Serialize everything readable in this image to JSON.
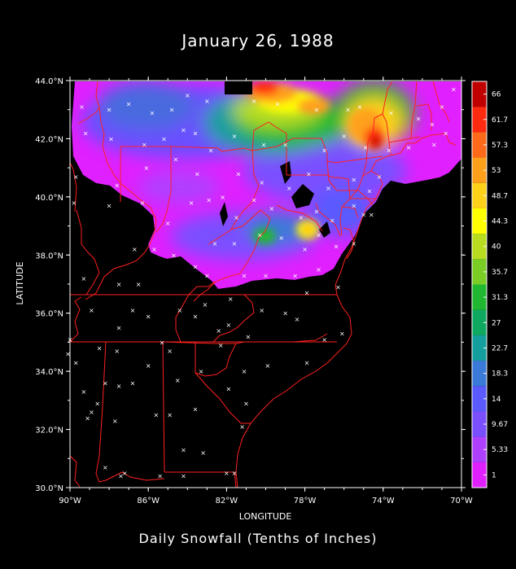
{
  "title": "January 26, 1988",
  "caption": "Daily Snowfall (Tenths of Inches)",
  "map": {
    "xlabel": "LONGITUDE",
    "ylabel": "LATITUDE",
    "lon_range": [
      -90,
      -70
    ],
    "lat_range": [
      30,
      44
    ],
    "x_ticks": [
      {
        "lon": -90,
        "label": "90°W"
      },
      {
        "lon": -86,
        "label": "86°W"
      },
      {
        "lon": -82,
        "label": "82°W"
      },
      {
        "lon": -78,
        "label": "78°W"
      },
      {
        "lon": -74,
        "label": "74°W"
      },
      {
        "lon": -70,
        "label": "70°W"
      }
    ],
    "y_ticks": [
      {
        "lat": 44,
        "label": "44.0°N"
      },
      {
        "lat": 42,
        "label": "42.0°N"
      },
      {
        "lat": 40,
        "label": "40.0°N"
      },
      {
        "lat": 38,
        "label": "38.0°N"
      },
      {
        "lat": 36,
        "label": "36.0°N"
      },
      {
        "lat": 34,
        "label": "34.0°N"
      },
      {
        "lat": 32,
        "label": "32.0°N"
      },
      {
        "lat": 30,
        "label": "30.0°N"
      }
    ],
    "border_color": "#ff2020",
    "station_marker_color": "#ffffff",
    "stations": [
      [
        -89.4,
        43.1
      ],
      [
        -88.0,
        43.0
      ],
      [
        -87.0,
        43.2
      ],
      [
        -85.8,
        42.9
      ],
      [
        -84.8,
        43.0
      ],
      [
        -84.0,
        43.5
      ],
      [
        -83.0,
        43.3
      ],
      [
        -80.6,
        43.3
      ],
      [
        -79.4,
        43.2
      ],
      [
        -77.4,
        43.0
      ],
      [
        -75.8,
        43.0
      ],
      [
        -75.2,
        43.1
      ],
      [
        -73.6,
        42.9
      ],
      [
        -72.2,
        42.7
      ],
      [
        -71.0,
        43.1
      ],
      [
        -70.4,
        43.7
      ],
      [
        -89.2,
        42.2
      ],
      [
        -87.9,
        42.0
      ],
      [
        -86.2,
        41.8
      ],
      [
        -85.2,
        42.0
      ],
      [
        -84.2,
        42.3
      ],
      [
        -83.6,
        42.2
      ],
      [
        -82.8,
        41.6
      ],
      [
        -81.6,
        42.1
      ],
      [
        -80.1,
        41.8
      ],
      [
        -79.0,
        41.8
      ],
      [
        -77.0,
        41.6
      ],
      [
        -76.0,
        42.1
      ],
      [
        -74.9,
        41.7
      ],
      [
        -73.7,
        41.6
      ],
      [
        -72.7,
        41.7
      ],
      [
        -71.4,
        41.8
      ],
      [
        -70.8,
        42.2
      ],
      [
        -71.5,
        42.5
      ],
      [
        -89.7,
        40.7
      ],
      [
        -87.6,
        40.4
      ],
      [
        -86.1,
        41.0
      ],
      [
        -84.6,
        41.3
      ],
      [
        -83.5,
        40.8
      ],
      [
        -82.2,
        40.0
      ],
      [
        -81.4,
        40.8
      ],
      [
        -80.2,
        40.5
      ],
      [
        -78.8,
        40.3
      ],
      [
        -77.8,
        40.8
      ],
      [
        -76.8,
        40.3
      ],
      [
        -75.5,
        40.6
      ],
      [
        -74.7,
        40.2
      ],
      [
        -74.2,
        40.7
      ],
      [
        -89.8,
        39.8
      ],
      [
        -88.0,
        39.7
      ],
      [
        -86.3,
        39.8
      ],
      [
        -85.0,
        39.1
      ],
      [
        -83.8,
        39.8
      ],
      [
        -82.9,
        39.9
      ],
      [
        -81.5,
        39.3
      ],
      [
        -80.6,
        39.9
      ],
      [
        -79.7,
        39.6
      ],
      [
        -78.2,
        39.3
      ],
      [
        -77.4,
        39.5
      ],
      [
        -76.6,
        39.2
      ],
      [
        -75.5,
        39.7
      ],
      [
        -75.0,
        39.4
      ],
      [
        -74.6,
        39.4
      ],
      [
        -86.7,
        38.2
      ],
      [
        -85.7,
        38.2
      ],
      [
        -84.7,
        38.0
      ],
      [
        -83.6,
        37.6
      ],
      [
        -82.6,
        38.4
      ],
      [
        -81.6,
        38.4
      ],
      [
        -80.3,
        38.7
      ],
      [
        -79.2,
        38.6
      ],
      [
        -78.0,
        38.2
      ],
      [
        -77.3,
        38.7
      ],
      [
        -76.4,
        38.3
      ],
      [
        -75.5,
        38.4
      ],
      [
        -89.3,
        37.2
      ],
      [
        -87.5,
        37.0
      ],
      [
        -86.5,
        37.0
      ],
      [
        -83.0,
        37.3
      ],
      [
        -81.1,
        37.3
      ],
      [
        -80.0,
        37.3
      ],
      [
        -78.5,
        37.3
      ],
      [
        -77.3,
        37.5
      ],
      [
        -76.3,
        36.9
      ],
      [
        -88.9,
        36.1
      ],
      [
        -86.8,
        36.1
      ],
      [
        -84.4,
        36.1
      ],
      [
        -83.1,
        36.3
      ],
      [
        -81.8,
        36.5
      ],
      [
        -80.2,
        36.1
      ],
      [
        -79.0,
        36.0
      ],
      [
        -77.9,
        36.7
      ],
      [
        -76.1,
        35.3
      ],
      [
        -77.0,
        35.1
      ],
      [
        -78.4,
        35.8
      ],
      [
        -80.9,
        35.2
      ],
      [
        -81.9,
        35.6
      ],
      [
        -82.4,
        35.4
      ],
      [
        -83.6,
        35.9
      ],
      [
        -85.3,
        35.0
      ],
      [
        -86.0,
        35.9
      ],
      [
        -87.5,
        35.5
      ],
      [
        -90.0,
        35.1
      ],
      [
        -89.7,
        34.3
      ],
      [
        -88.5,
        34.8
      ],
      [
        -87.6,
        34.7
      ],
      [
        -86.0,
        34.2
      ],
      [
        -84.9,
        34.7
      ],
      [
        -83.3,
        34.0
      ],
      [
        -82.3,
        34.9
      ],
      [
        -81.1,
        34.0
      ],
      [
        -79.9,
        34.2
      ],
      [
        -77.9,
        34.3
      ],
      [
        -89.3,
        33.3
      ],
      [
        -88.6,
        32.9
      ],
      [
        -88.2,
        33.6
      ],
      [
        -87.5,
        33.5
      ],
      [
        -86.8,
        33.6
      ],
      [
        -84.5,
        33.7
      ],
      [
        -83.6,
        32.7
      ],
      [
        -81.9,
        33.4
      ],
      [
        -81.0,
        32.9
      ],
      [
        -89.1,
        32.4
      ],
      [
        -88.9,
        32.6
      ],
      [
        -87.7,
        32.3
      ],
      [
        -85.6,
        32.5
      ],
      [
        -84.9,
        32.5
      ],
      [
        -81.2,
        32.1
      ],
      [
        -83.2,
        31.2
      ],
      [
        -84.2,
        31.3
      ],
      [
        -82.0,
        30.5
      ],
      [
        -81.6,
        30.5
      ],
      [
        -88.2,
        30.7
      ],
      [
        -87.2,
        30.5
      ],
      [
        -85.4,
        30.4
      ],
      [
        -84.2,
        30.4
      ],
      [
        -87.4,
        30.4
      ],
      [
        -90.1,
        34.6
      ]
    ]
  },
  "colorbar": {
    "levels": [
      "1",
      "5.33",
      "9.67",
      "14",
      "18.3",
      "22.7",
      "27",
      "31.3",
      "35.7",
      "40",
      "44.3",
      "48.7",
      "53",
      "57.3",
      "61.7",
      "66"
    ],
    "colors": [
      "#e020ff",
      "#b040ff",
      "#7a4fff",
      "#5a5aff",
      "#3a7ad8",
      "#159e9e",
      "#0fa860",
      "#20b830",
      "#7acd25",
      "#b8dd20",
      "#ffff00",
      "#ffd21a",
      "#ffa01a",
      "#ff6a1a",
      "#ff2a10",
      "#c00000"
    ]
  }
}
